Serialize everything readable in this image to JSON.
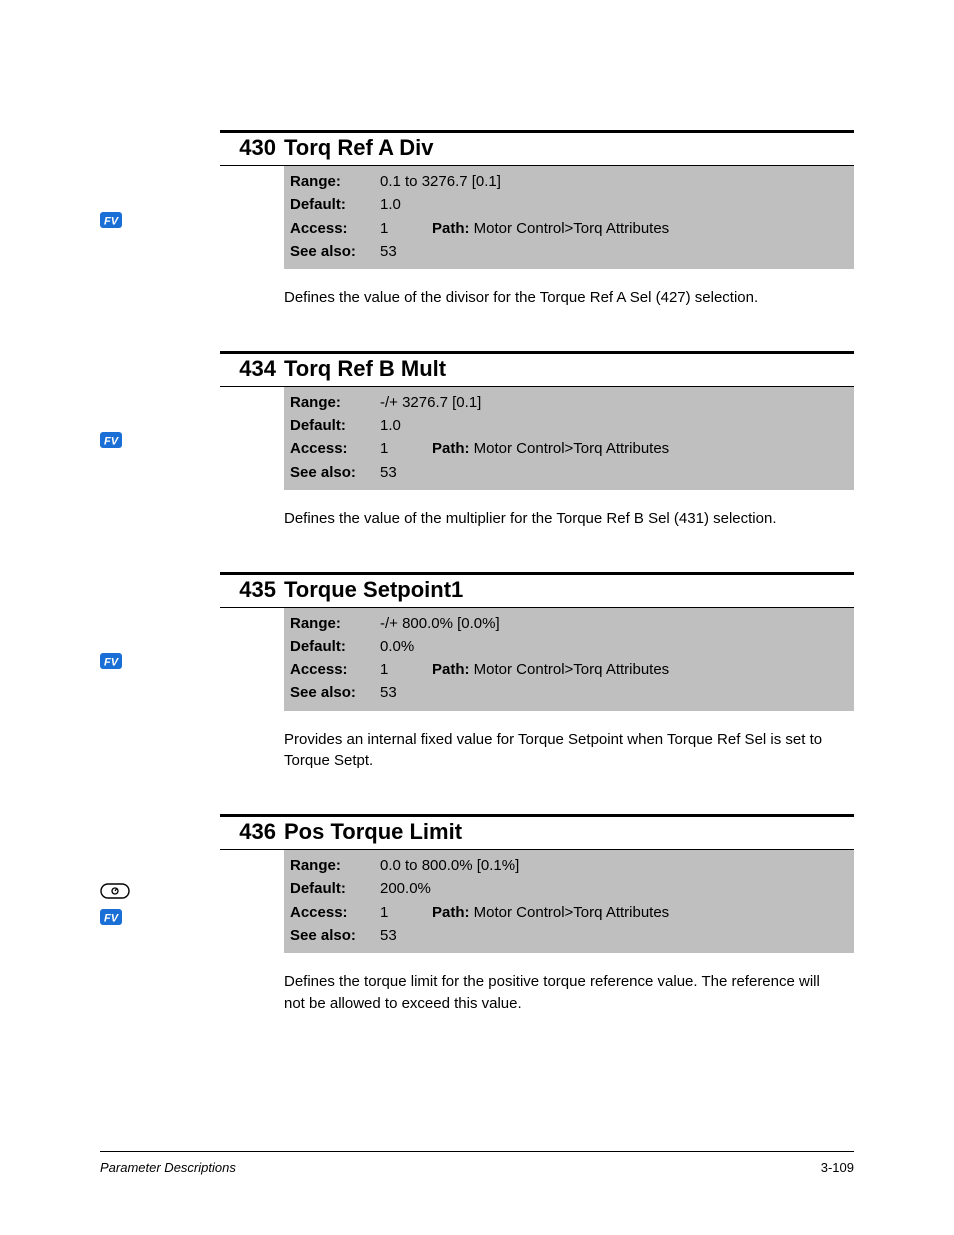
{
  "page": {
    "footer_left": "Parameter Descriptions",
    "footer_right": "3-109"
  },
  "label_text": {
    "range": "Range:",
    "default": "Default:",
    "access": "Access:",
    "see_also": "See also:",
    "path": "Path: "
  },
  "colors": {
    "icon_blue": "#1a6fd6",
    "info_bg": "#bfbfbf",
    "text": "#000000"
  },
  "params": [
    {
      "number": "430",
      "title": "Torq Ref A Div",
      "icons": [
        "fv"
      ],
      "range": "0.1 to 3276.7   [0.1]",
      "default": "1.0",
      "access": "1",
      "path": "Motor Control>Torq Attributes",
      "see_also": "53",
      "description": "Defines the value of the divisor for the Torque Ref A Sel (427) selection."
    },
    {
      "number": "434",
      "title": "Torq Ref B Mult",
      "icons": [
        "fv"
      ],
      "range": "-/+ 3276.7   [0.1]",
      "default": "1.0",
      "access": "1",
      "path": "Motor Control>Torq Attributes",
      "see_also": "53",
      "description": "Defines the value of the multiplier for the Torque Ref B Sel (431) selection."
    },
    {
      "number": "435",
      "title": "Torque Setpoint1",
      "icons": [
        "fv"
      ],
      "range": "-/+ 800.0%   [0.0%]",
      "default": "0.0%",
      "access": "1",
      "path": "Motor Control>Torq Attributes",
      "see_also": "53",
      "description": "Provides an internal fixed value for Torque Setpoint when Torque Ref Sel is set to Torque Setpt."
    },
    {
      "number": "436",
      "title": "Pos Torque Limit",
      "icons": [
        "gauge",
        "fv"
      ],
      "range": "0.0 to 800.0%   [0.1%]",
      "default": "200.0%",
      "access": "1",
      "path": "Motor Control>Torq Attributes",
      "see_also": "53",
      "description": "Defines the torque limit for the positive torque reference value. The reference will not be allowed to exceed this value."
    }
  ]
}
